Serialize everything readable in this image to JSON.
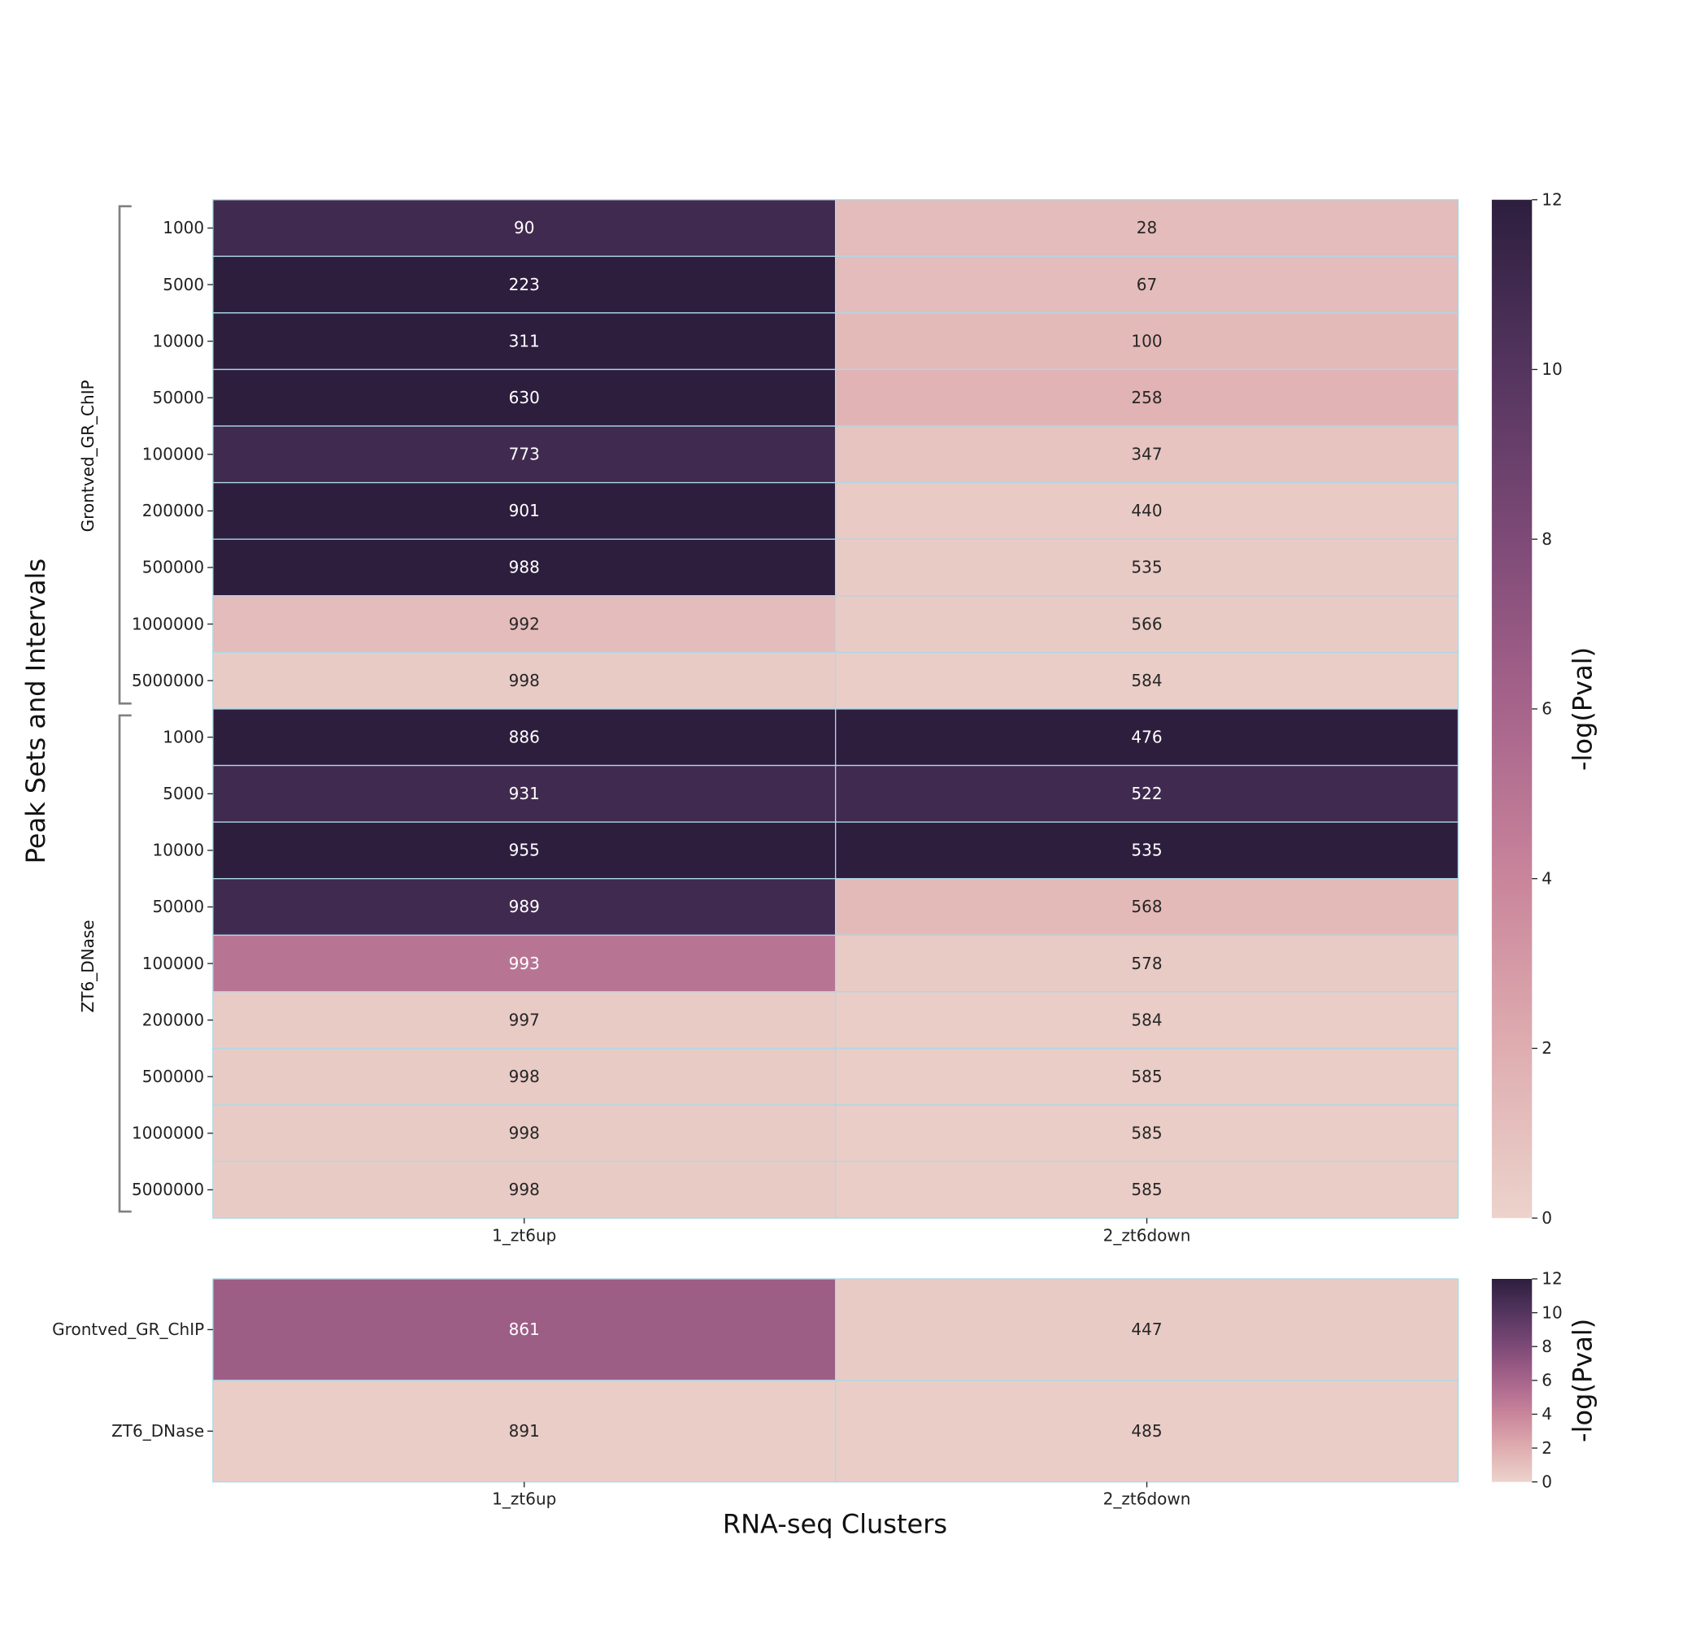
{
  "chart_data": [
    {
      "type": "heatmap",
      "ylabel": "Peak Sets and Intervals",
      "xlabel": "",
      "columns": [
        "1_zt6up",
        "2_zt6down"
      ],
      "groups": [
        {
          "name": "Grontved_GR_ChIP",
          "rows": [
            "1000",
            "5000",
            "10000",
            "50000",
            "100000",
            "200000",
            "500000",
            "1000000",
            "5000000"
          ]
        },
        {
          "name": "ZT6_DNase",
          "rows": [
            "1000",
            "5000",
            "10000",
            "50000",
            "100000",
            "200000",
            "500000",
            "1000000",
            "5000000"
          ]
        }
      ],
      "annotations": [
        [
          90,
          28
        ],
        [
          223,
          67
        ],
        [
          311,
          100
        ],
        [
          630,
          258
        ],
        [
          773,
          347
        ],
        [
          901,
          440
        ],
        [
          988,
          535
        ],
        [
          992,
          566
        ],
        [
          998,
          584
        ],
        [
          886,
          476
        ],
        [
          931,
          522
        ],
        [
          955,
          535
        ],
        [
          989,
          568
        ],
        [
          993,
          578
        ],
        [
          997,
          584
        ],
        [
          998,
          585
        ],
        [
          998,
          585
        ],
        [
          998,
          585
        ]
      ],
      "neg_log_pval": [
        [
          11,
          1.2
        ],
        [
          12,
          1.2
        ],
        [
          12,
          1.3
        ],
        [
          12,
          1.7
        ],
        [
          11,
          0.8
        ],
        [
          12,
          0.5
        ],
        [
          12,
          0.4
        ],
        [
          1.2,
          0.4
        ],
        [
          0.4,
          0.3
        ],
        [
          12,
          12
        ],
        [
          11,
          11
        ],
        [
          12,
          12
        ],
        [
          11,
          1.3
        ],
        [
          5,
          0.4
        ],
        [
          0.4,
          0.3
        ],
        [
          0.4,
          0.3
        ],
        [
          0.4,
          0.3
        ],
        [
          0.4,
          0.3
        ]
      ],
      "colorbar": {
        "label": "-log(Pval)",
        "range": [
          0,
          12
        ],
        "ticks": [
          "0",
          "2",
          "4",
          "6",
          "8",
          "10",
          "12"
        ]
      }
    },
    {
      "type": "heatmap",
      "xlabel": "RNA-seq Clusters",
      "columns": [
        "1_zt6up",
        "2_zt6down"
      ],
      "rows": [
        "Grontved_GR_ChIP",
        "ZT6_DNase"
      ],
      "annotations": [
        [
          861,
          447
        ],
        [
          891,
          485
        ]
      ],
      "neg_log_pval": [
        [
          6.5,
          0.4
        ],
        [
          0.3,
          0.3
        ]
      ],
      "colorbar": {
        "label": "-log(Pval)",
        "range": [
          0,
          12
        ],
        "ticks": [
          "0",
          "2",
          "4",
          "6",
          "8",
          "10",
          "12"
        ]
      }
    }
  ],
  "colors": {
    "colormap": [
      "#ecd3cb",
      "#dfadb0",
      "#c9859b",
      "#a7648b",
      "#7e4a77",
      "#54355f",
      "#2d1e3e"
    ],
    "gridline": "#add8e6",
    "bracket": "#808080"
  }
}
